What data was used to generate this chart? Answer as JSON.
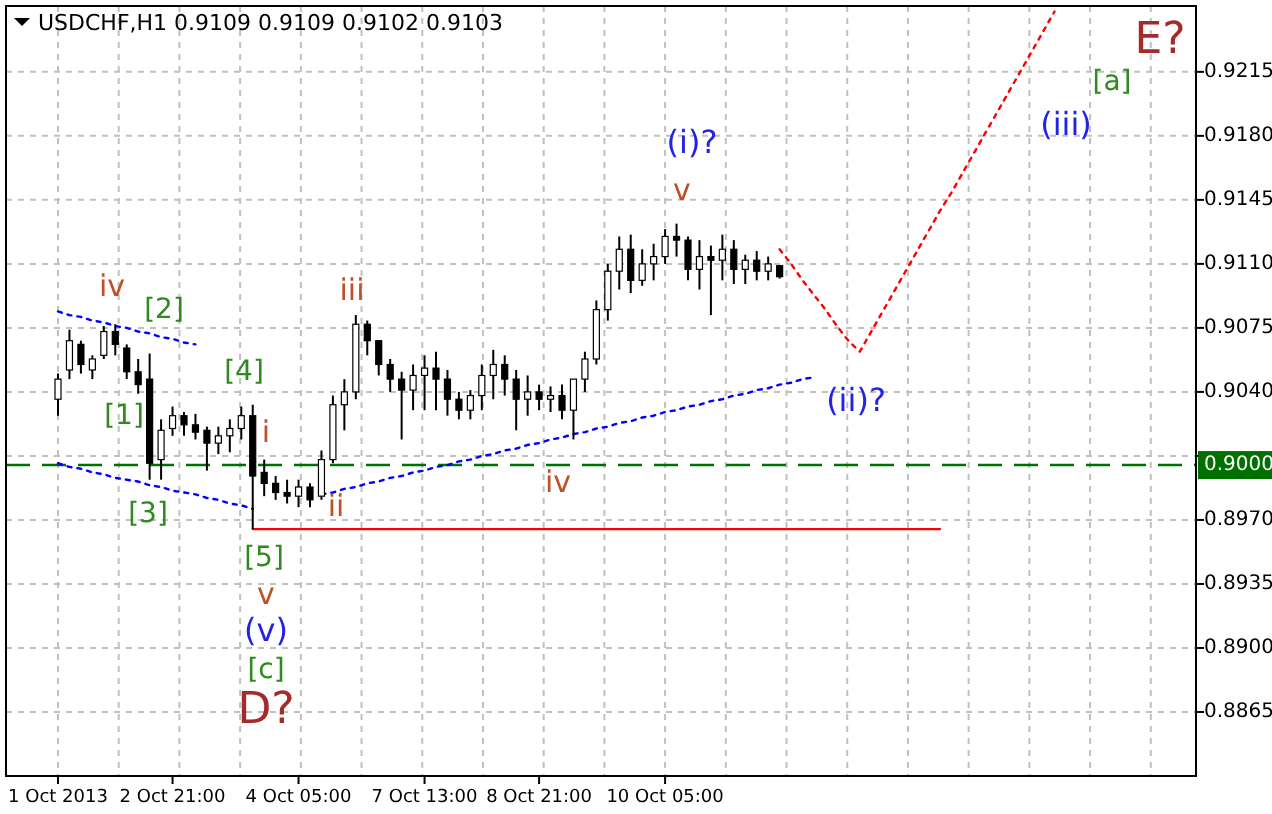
{
  "chart_data": {
    "type": "candlestick",
    "title": "USDCHF,H1  0.9109 0.9109 0.9102 0.9103",
    "categories": [
      "1 Oct 2013",
      null,
      null,
      null,
      null,
      null,
      null,
      null,
      null,
      null,
      "2 Oct 21:00",
      null,
      null,
      null,
      null,
      null,
      null,
      null,
      null,
      null,
      null,
      "4 Oct 05:00",
      null,
      null,
      null,
      null,
      null,
      null,
      null,
      null,
      null,
      null,
      "7 Oct 13:00",
      null,
      null,
      null,
      null,
      null,
      null,
      null,
      null,
      null,
      "8 Oct 21:00",
      null,
      null,
      null,
      null,
      null,
      null,
      null,
      null,
      null,
      null,
      "10 Oct 05:00",
      null,
      null,
      null,
      null,
      null,
      null,
      null,
      null,
      null,
      null,
      null,
      null,
      null,
      null,
      null,
      null,
      null,
      null,
      null,
      null,
      null,
      null,
      null,
      null,
      null,
      null,
      null,
      null,
      null,
      null,
      null,
      null,
      null,
      null,
      null,
      null,
      null,
      null,
      null,
      null,
      null,
      null,
      null,
      null,
      null,
      null
    ],
    "ohlc": [
      [
        0.9036,
        0.905,
        0.9027,
        0.9047
      ],
      [
        0.9052,
        0.9074,
        0.9047,
        0.9068
      ],
      [
        0.9066,
        0.9068,
        0.905,
        0.9055
      ],
      [
        0.9052,
        0.906,
        0.9047,
        0.9058
      ],
      [
        0.906,
        0.9076,
        0.9058,
        0.9073
      ],
      [
        0.9073,
        0.9077,
        0.906,
        0.9066
      ],
      [
        0.9064,
        0.9066,
        0.9047,
        0.9051
      ],
      [
        0.9051,
        0.9058,
        0.9039,
        0.9044
      ],
      [
        0.9047,
        0.9061,
        0.8992,
        0.9001
      ],
      [
        0.9003,
        0.9025,
        0.8992,
        0.9019
      ],
      [
        0.902,
        0.9032,
        0.9016,
        0.9027
      ],
      [
        0.9027,
        0.9029,
        0.9016,
        0.9022
      ],
      [
        0.9022,
        0.9028,
        0.9014,
        0.9018
      ],
      [
        0.9019,
        0.9021,
        0.8997,
        0.9012
      ],
      [
        0.9012,
        0.9021,
        0.9006,
        0.9016
      ],
      [
        0.9016,
        0.9025,
        0.9007,
        0.902
      ],
      [
        0.902,
        0.9032,
        0.9014,
        0.9027
      ],
      [
        0.9027,
        0.9033,
        0.8965,
        0.8994
      ],
      [
        0.8996,
        0.9003,
        0.8983,
        0.899
      ],
      [
        0.899,
        0.8994,
        0.8981,
        0.8985
      ],
      [
        0.8985,
        0.8992,
        0.8979,
        0.8983
      ],
      [
        0.8983,
        0.8992,
        0.8977,
        0.8988
      ],
      [
        0.8988,
        0.899,
        0.8977,
        0.8981
      ],
      [
        0.8983,
        0.9008,
        0.8981,
        0.9003
      ],
      [
        0.9003,
        0.9038,
        0.9001,
        0.9033
      ],
      [
        0.9033,
        0.9047,
        0.9019,
        0.904
      ],
      [
        0.904,
        0.9082,
        0.9036,
        0.9077
      ],
      [
        0.9077,
        0.9079,
        0.906,
        0.9068
      ],
      [
        0.9068,
        0.9068,
        0.9049,
        0.9055
      ],
      [
        0.9055,
        0.9058,
        0.904,
        0.9047
      ],
      [
        0.9047,
        0.9051,
        0.9014,
        0.9041
      ],
      [
        0.9041,
        0.9055,
        0.903,
        0.9049
      ],
      [
        0.9049,
        0.906,
        0.903,
        0.9053
      ],
      [
        0.9053,
        0.9062,
        0.903,
        0.9047
      ],
      [
        0.9047,
        0.9052,
        0.9027,
        0.9036
      ],
      [
        0.9036,
        0.904,
        0.9025,
        0.903
      ],
      [
        0.903,
        0.9041,
        0.9025,
        0.9038
      ],
      [
        0.9038,
        0.9055,
        0.903,
        0.9049
      ],
      [
        0.9049,
        0.9063,
        0.9036,
        0.9055
      ],
      [
        0.9055,
        0.906,
        0.9038,
        0.9047
      ],
      [
        0.9047,
        0.9052,
        0.9019,
        0.9036
      ],
      [
        0.9036,
        0.9049,
        0.9027,
        0.904
      ],
      [
        0.904,
        0.9044,
        0.903,
        0.9036
      ],
      [
        0.9036,
        0.9043,
        0.9029,
        0.9038
      ],
      [
        0.9038,
        0.9044,
        0.9025,
        0.903
      ],
      [
        0.903,
        0.9047,
        0.9014,
        0.9047
      ],
      [
        0.9047,
        0.9062,
        0.904,
        0.9058
      ],
      [
        0.9058,
        0.909,
        0.9055,
        0.9085
      ],
      [
        0.9085,
        0.911,
        0.9079,
        0.9106
      ],
      [
        0.9106,
        0.9125,
        0.9096,
        0.9118
      ],
      [
        0.9118,
        0.9126,
        0.9094,
        0.9101
      ],
      [
        0.9101,
        0.9118,
        0.9098,
        0.911
      ],
      [
        0.911,
        0.9121,
        0.9101,
        0.9114
      ],
      [
        0.9114,
        0.9129,
        0.911,
        0.9125
      ],
      [
        0.9125,
        0.9132,
        0.9114,
        0.9123
      ],
      [
        0.9123,
        0.9125,
        0.9101,
        0.9107
      ],
      [
        0.9107,
        0.9123,
        0.9096,
        0.9114
      ],
      [
        0.9114,
        0.912,
        0.9082,
        0.9112
      ],
      [
        0.9112,
        0.9126,
        0.9101,
        0.9118
      ],
      [
        0.9118,
        0.9123,
        0.9099,
        0.9107
      ],
      [
        0.9107,
        0.9115,
        0.9099,
        0.9112
      ],
      [
        0.9112,
        0.9117,
        0.9101,
        0.9106
      ],
      [
        0.9106,
        0.9114,
        0.9101,
        0.911
      ],
      [
        0.9109,
        0.9109,
        0.9102,
        0.9103
      ],
      null,
      null,
      null,
      null,
      null,
      null,
      null,
      null,
      null,
      null,
      null,
      null,
      null,
      null,
      null,
      null,
      null,
      null,
      null,
      null,
      null,
      null,
      null,
      null,
      null,
      null,
      null,
      null,
      null,
      null,
      null,
      null,
      null,
      null,
      null,
      null
    ],
    "color": "#000000",
    "series": [
      {
        "type": "line",
        "color": "#0000ff",
        "line_style": "dotted",
        "values": [
          0.9084,
          0.9082,
          0.9081,
          0.9079,
          0.9078,
          0.9076,
          0.9075,
          0.9073,
          0.9072,
          0.907,
          0.9069,
          0.9067,
          0.9066,
          null,
          null,
          null,
          null,
          null,
          null,
          null,
          null,
          null,
          null,
          null,
          null,
          null,
          null,
          null,
          null,
          null,
          null,
          null,
          null,
          null,
          null,
          null,
          null,
          null,
          null,
          null,
          null,
          null,
          null,
          null,
          null,
          null,
          null,
          null,
          null,
          null,
          null,
          null,
          null,
          null,
          null,
          null,
          null,
          null,
          null,
          null,
          null,
          null,
          null,
          null,
          null,
          null,
          null,
          null,
          null,
          null,
          null,
          null,
          null,
          null,
          null,
          null,
          null,
          null,
          null,
          null,
          null,
          null,
          null,
          null,
          null,
          null,
          null,
          null,
          null,
          null,
          null,
          null,
          null,
          null,
          null,
          null,
          null,
          null,
          null,
          null
        ]
      },
      {
        "type": "line",
        "color": "#0000ff",
        "line_style": "dotted",
        "values": [
          0.9001,
          0.8999,
          0.8998,
          0.8996,
          0.8995,
          0.8993,
          0.8992,
          0.8991,
          0.8989,
          0.8988,
          0.8986,
          0.8985,
          0.8984,
          0.8982,
          0.8981,
          0.8979,
          0.8978,
          0.8976,
          null,
          null,
          null,
          null,
          null,
          null,
          null,
          null,
          null,
          null,
          null,
          null,
          null,
          null,
          null,
          null,
          null,
          null,
          null,
          null,
          null,
          null,
          null,
          null,
          null,
          null,
          null,
          null,
          null,
          null,
          null,
          null,
          null,
          null,
          null,
          null,
          null,
          null,
          null,
          null,
          null,
          null,
          null,
          null,
          null,
          null,
          null,
          null,
          null,
          null,
          null,
          null,
          null,
          null,
          null,
          null,
          null,
          null,
          null,
          null,
          null,
          null,
          null,
          null,
          null,
          null,
          null,
          null,
          null,
          null,
          null,
          null,
          null,
          null,
          null,
          null,
          null,
          null,
          null,
          null,
          null,
          null
        ]
      },
      {
        "type": "line",
        "color": "#0000ff",
        "line_style": "dotted",
        "values": [
          null,
          null,
          null,
          null,
          null,
          null,
          null,
          null,
          null,
          null,
          null,
          null,
          null,
          null,
          null,
          null,
          null,
          null,
          null,
          null,
          null,
          null,
          null,
          0.8984,
          0.8985,
          0.8987,
          0.8988,
          0.899,
          0.8991,
          0.8993,
          0.8994,
          0.8996,
          0.8997,
          0.8999,
          0.9,
          0.9002,
          0.9003,
          0.9005,
          0.9006,
          0.9008,
          0.9009,
          0.9011,
          0.9012,
          0.9014,
          0.9015,
          0.9017,
          0.9018,
          0.902,
          0.9021,
          0.9023,
          0.9024,
          0.9026,
          0.9027,
          0.9029,
          0.903,
          0.9032,
          0.9033,
          0.9035,
          0.9036,
          0.9038,
          0.9039,
          0.9041,
          0.9042,
          0.9044,
          0.9045,
          0.9047,
          0.9048,
          null,
          null,
          null,
          null,
          null,
          null,
          null,
          null,
          null,
          null,
          null,
          null,
          null,
          null,
          null,
          null,
          null,
          null,
          null,
          null,
          null,
          null,
          null,
          null,
          null,
          null,
          null,
          null,
          null,
          null,
          null,
          null,
          null
        ]
      },
      {
        "type": "line",
        "color": "#ff0000",
        "line_style": "solid",
        "values": [
          null,
          null,
          null,
          null,
          null,
          null,
          null,
          null,
          null,
          null,
          null,
          null,
          null,
          null,
          null,
          null,
          null,
          0.8965,
          0.8965,
          0.8965,
          0.8965,
          0.8965,
          0.8965,
          0.8965,
          0.8965,
          0.8965,
          0.8965,
          0.8965,
          0.8965,
          0.8965,
          0.8965,
          0.8965,
          0.8965,
          0.8965,
          0.8965,
          0.8965,
          0.8965,
          0.8965,
          0.8965,
          0.8965,
          0.8965,
          0.8965,
          0.8965,
          0.8965,
          0.8965,
          0.8965,
          0.8965,
          0.8965,
          0.8965,
          0.8965,
          0.8965,
          0.8965,
          0.8965,
          0.8965,
          0.8965,
          0.8965,
          0.8965,
          0.8965,
          0.8965,
          0.8965,
          0.8965,
          0.8965,
          0.8965,
          0.8965,
          0.8965,
          0.8965,
          0.8965,
          0.8965,
          0.8965,
          0.8965,
          0.8965,
          0.8965,
          0.8965,
          0.8965,
          0.8965,
          0.8965,
          0.8965,
          0.8965,
          null,
          null,
          null,
          null,
          null,
          null,
          null,
          null,
          null,
          null,
          null,
          null,
          null,
          null,
          null,
          null,
          null,
          null,
          null,
          null,
          null,
          null
        ]
      },
      {
        "type": "line",
        "color": "#ff0000",
        "line_style": "dotted",
        "values": [
          null,
          null,
          null,
          null,
          null,
          null,
          null,
          null,
          null,
          null,
          null,
          null,
          null,
          null,
          null,
          null,
          null,
          null,
          null,
          null,
          null,
          null,
          null,
          null,
          null,
          null,
          null,
          null,
          null,
          null,
          null,
          null,
          null,
          null,
          null,
          null,
          null,
          null,
          null,
          null,
          null,
          null,
          null,
          null,
          null,
          null,
          null,
          null,
          null,
          null,
          null,
          null,
          null,
          null,
          null,
          null,
          null,
          null,
          null,
          null,
          null,
          null,
          null,
          0.9118,
          0.911,
          0.9101,
          0.9093,
          0.9085,
          0.9076,
          0.9068,
          0.9062,
          0.9073,
          0.9084,
          0.9095,
          0.9106,
          0.9117,
          0.9128,
          0.9139,
          0.9149,
          0.916,
          0.9171,
          0.9182,
          0.9193,
          0.9204,
          0.9215,
          0.9226,
          0.9237,
          0.9248,
          null,
          null,
          null,
          null,
          null,
          null,
          null,
          null,
          null,
          null,
          null,
          null
        ]
      }
    ],
    "ref_lines": [
      {
        "axis": "y",
        "value": 0.9,
        "label": "0.9000",
        "color": "#007000",
        "line_style": "dashed"
      }
    ],
    "annotations": [
      "iv",
      "[2]",
      "[1]",
      "[4]",
      "[3]",
      "i",
      "ii",
      "iii",
      "iv",
      "v",
      "(i)?",
      "(ii)?",
      "(iii)",
      "[a]",
      "E?",
      "[5]",
      "v",
      "(v)",
      "[c]",
      "D?"
    ],
    "ylim": [
      0.883,
      0.9251
    ],
    "yticks": [
      {
        "value": 0.8865,
        "label": "0.8865"
      },
      {
        "value": 0.89,
        "label": "0.8900"
      },
      {
        "value": 0.8935,
        "label": "0.8935"
      },
      {
        "value": 0.897,
        "label": "0.8970"
      },
      {
        "value": 0.9005,
        "label": null
      },
      {
        "value": 0.904,
        "label": "0.9040"
      },
      {
        "value": 0.9075,
        "label": "0.9075"
      },
      {
        "value": 0.911,
        "label": "0.9110"
      },
      {
        "value": 0.9145,
        "label": "0.9145"
      },
      {
        "value": 0.918,
        "label": "0.9180"
      },
      {
        "value": 0.9215,
        "label": "0.9215"
      }
    ],
    "grid": true
  }
}
